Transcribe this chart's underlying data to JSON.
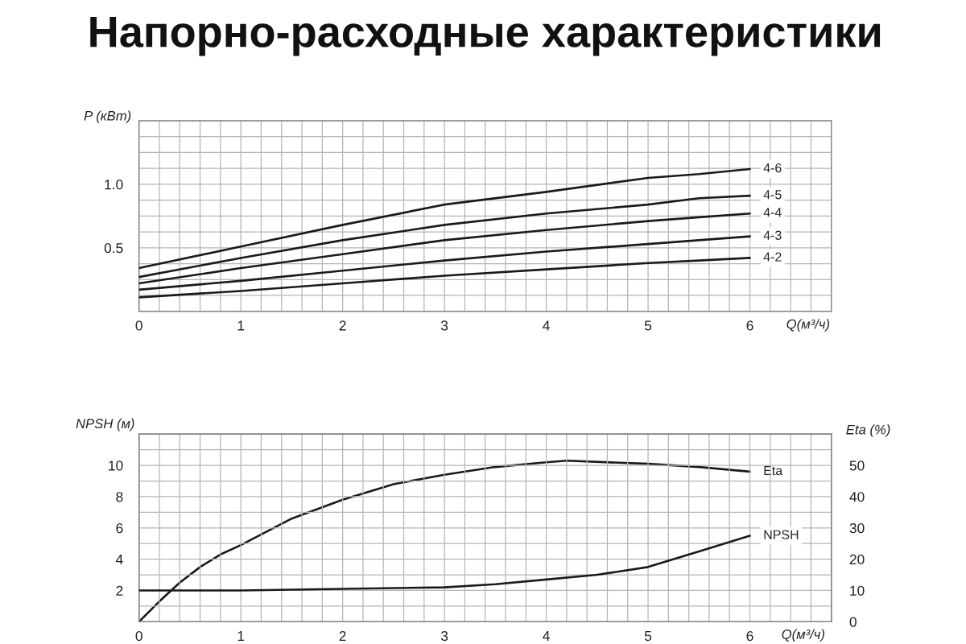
{
  "chart_data": [
    {
      "type": "line",
      "title": "Напорно-расходные характеристики",
      "xlabel": "Q(м³/ч)",
      "ylabel": "P (кВт)",
      "x": [
        0,
        1,
        2,
        3,
        4,
        5,
        5.5,
        6
      ],
      "series": [
        {
          "name": "4-6",
          "color": "#1a1a1a",
          "values": [
            0.34,
            0.51,
            0.68,
            0.84,
            0.94,
            1.05,
            1.08,
            1.12
          ]
        },
        {
          "name": "4-5",
          "color": "#1a1a1a",
          "values": [
            0.27,
            0.42,
            0.56,
            0.68,
            0.77,
            0.84,
            0.89,
            0.91
          ]
        },
        {
          "name": "4-4",
          "color": "#1a1a1a",
          "values": [
            0.22,
            0.34,
            0.45,
            0.56,
            0.64,
            0.71,
            0.74,
            0.77
          ]
        },
        {
          "name": "4-3",
          "color": "#1a1a1a",
          "values": [
            0.17,
            0.24,
            0.32,
            0.4,
            0.47,
            0.53,
            0.56,
            0.59
          ]
        },
        {
          "name": "4-2",
          "color": "#1a1a1a",
          "values": [
            0.11,
            0.16,
            0.22,
            0.28,
            0.33,
            0.38,
            0.4,
            0.42
          ]
        }
      ],
      "xlim": [
        0,
        6.8
      ],
      "xticks": [
        0,
        {
          "value": 0.2,
          "label": null
        },
        {
          "value": 0.4,
          "label": null
        },
        {
          "value": 0.6,
          "label": null
        },
        {
          "value": 0.8,
          "label": null
        },
        1,
        {
          "value": 1.2,
          "label": null
        },
        {
          "value": 1.4,
          "label": null
        },
        {
          "value": 1.6,
          "label": null
        },
        {
          "value": 1.8,
          "label": null
        },
        2,
        {
          "value": 2.2,
          "label": null
        },
        {
          "value": 2.4,
          "label": null
        },
        {
          "value": 2.6,
          "label": null
        },
        {
          "value": 2.8,
          "label": null
        },
        3,
        {
          "value": 3.2,
          "label": null
        },
        {
          "value": 3.4,
          "label": null
        },
        {
          "value": 3.6,
          "label": null
        },
        {
          "value": 3.8,
          "label": null
        },
        4,
        {
          "value": 4.2,
          "label": null
        },
        {
          "value": 4.4,
          "label": null
        },
        {
          "value": 4.6,
          "label": null
        },
        {
          "value": 4.8,
          "label": null
        },
        5,
        {
          "value": 5.2,
          "label": null
        },
        {
          "value": 5.4,
          "label": null
        },
        {
          "value": 5.6,
          "label": null
        },
        {
          "value": 5.8,
          "label": null
        },
        6,
        {
          "value": 6.2,
          "label": null
        },
        {
          "value": 6.4,
          "label": null
        },
        {
          "value": 6.6,
          "label": null
        },
        {
          "value": 6.8,
          "label": null
        }
      ],
      "ylim": [
        0,
        1.5
      ],
      "yticks": [
        {
          "value": 0,
          "label": null
        },
        {
          "value": 0.125,
          "label": null
        },
        {
          "value": 0.25,
          "label": null
        },
        {
          "value": 0.375,
          "label": null
        },
        0.5,
        {
          "value": 0.625,
          "label": null
        },
        {
          "value": 0.75,
          "label": null
        },
        {
          "value": 0.875,
          "label": null
        },
        {
          "value": 1,
          "label": "1.0"
        },
        {
          "value": 1.125,
          "label": null
        },
        {
          "value": 1.25,
          "label": null
        },
        {
          "value": 1.375,
          "label": null
        },
        {
          "value": 1.5,
          "label": null
        }
      ],
      "grid": true
    },
    {
      "type": "line",
      "xlabel": "Q(м³/ч)",
      "ylabel": "NPSH (м)",
      "y2label": "Eta (%)",
      "series": [
        {
          "name": "Eta",
          "color": "#1a1a1a",
          "axis": "y2",
          "x": [
            0,
            0.2,
            0.4,
            0.6,
            0.8,
            1,
            1.5,
            2,
            2.5,
            3,
            3.5,
            4,
            4.2,
            5,
            5.5,
            6
          ],
          "values": [
            0,
            6.5,
            12.5,
            17.5,
            21.5,
            24.5,
            33,
            39,
            44,
            47,
            49.5,
            51,
            51.5,
            50.5,
            49.5,
            48
          ]
        },
        {
          "name": "NPSH",
          "color": "#1a1a1a",
          "x": [
            0,
            1,
            2,
            3,
            3.5,
            4,
            4.5,
            5,
            5.5,
            6
          ],
          "values": [
            2,
            2,
            2.1,
            2.2,
            2.4,
            2.7,
            3.0,
            3.5,
            4.5,
            5.5
          ]
        }
      ],
      "xlim": [
        0,
        6.8
      ],
      "xticks": [
        0,
        {
          "value": 0.2,
          "label": null
        },
        {
          "value": 0.4,
          "label": null
        },
        {
          "value": 0.6,
          "label": null
        },
        {
          "value": 0.8,
          "label": null
        },
        1,
        {
          "value": 1.2,
          "label": null
        },
        {
          "value": 1.4,
          "label": null
        },
        {
          "value": 1.6,
          "label": null
        },
        {
          "value": 1.8,
          "label": null
        },
        2,
        {
          "value": 2.2,
          "label": null
        },
        {
          "value": 2.4,
          "label": null
        },
        {
          "value": 2.6,
          "label": null
        },
        {
          "value": 2.8,
          "label": null
        },
        3,
        {
          "value": 3.2,
          "label": null
        },
        {
          "value": 3.4,
          "label": null
        },
        {
          "value": 3.6,
          "label": null
        },
        {
          "value": 3.8,
          "label": null
        },
        4,
        {
          "value": 4.2,
          "label": null
        },
        {
          "value": 4.4,
          "label": null
        },
        {
          "value": 4.6,
          "label": null
        },
        {
          "value": 4.8,
          "label": null
        },
        5,
        {
          "value": 5.2,
          "label": null
        },
        {
          "value": 5.4,
          "label": null
        },
        {
          "value": 5.6,
          "label": null
        },
        {
          "value": 5.8,
          "label": null
        },
        6,
        {
          "value": 6.2,
          "label": null
        },
        {
          "value": 6.4,
          "label": null
        },
        {
          "value": 6.6,
          "label": null
        },
        {
          "value": 6.8,
          "label": null
        }
      ],
      "ylim": [
        0,
        12
      ],
      "yticks": [
        {
          "value": 0,
          "label": null
        },
        {
          "value": 1,
          "label": null
        },
        2,
        {
          "value": 3,
          "label": null
        },
        4,
        {
          "value": 5,
          "label": null
        },
        6,
        {
          "value": 7,
          "label": null
        },
        8,
        {
          "value": 9,
          "label": null
        },
        10,
        {
          "value": 11,
          "label": null
        },
        {
          "value": 12,
          "label": null
        }
      ],
      "y2lim": [
        0,
        60
      ],
      "y2ticks": [
        0,
        10,
        20,
        30,
        40,
        50
      ],
      "grid": true
    }
  ]
}
